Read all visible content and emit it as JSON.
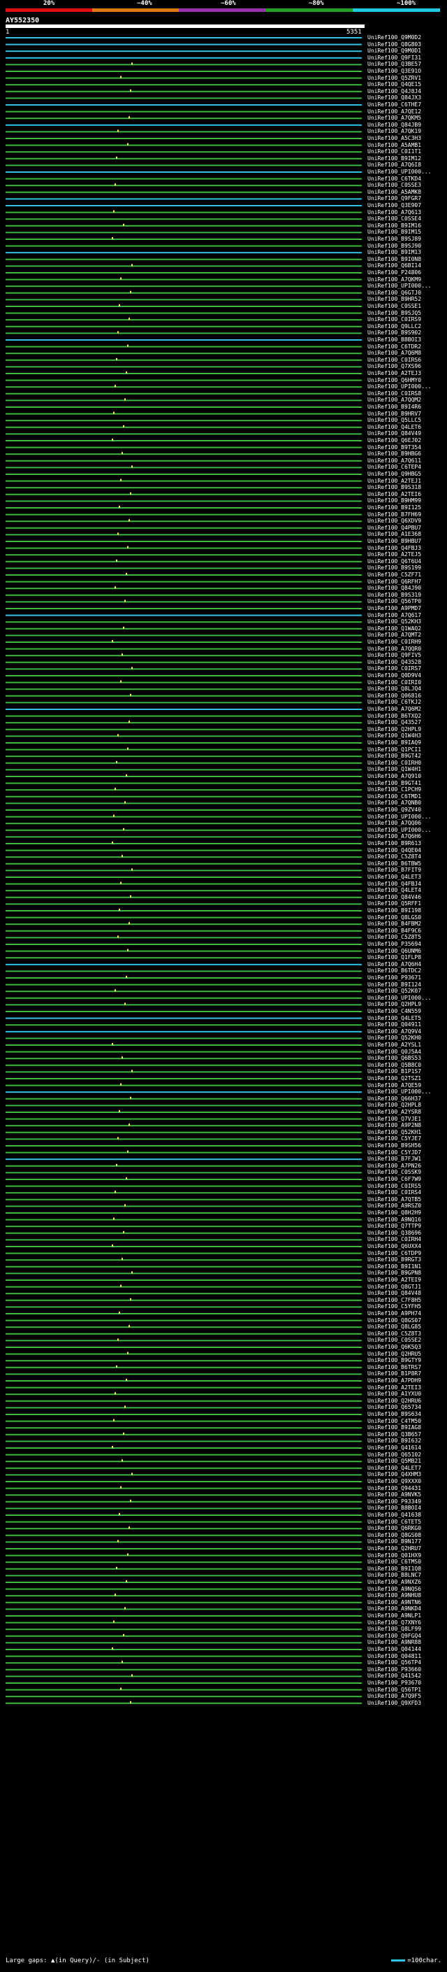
{
  "scale": {
    "labels": [
      "20%",
      "~40%",
      "~60%",
      "~80%",
      "~100%"
    ],
    "colors": [
      "#e01010",
      "#e07810",
      "#9a30b0",
      "#20a020",
      "#20c8e0"
    ]
  },
  "query": {
    "title": "AY552350",
    "start": "1",
    "end": "5351"
  },
  "legend": {
    "gaps_text": "Large gaps: ▲(in Query)/- (in Subject)",
    "scale_text": "=100char."
  },
  "colors": {
    "high": "#2fc4e8",
    "good": "#3cb83c",
    "insertion": "#ffe96b",
    "background": "#000000"
  },
  "hits": [
    {
      "label": "UniRef100_Q9M0D2",
      "color": "high"
    },
    {
      "label": "UniRef100_Q8G803",
      "color": "high"
    },
    {
      "label": "UniRef100_Q9M0D1",
      "color": "high"
    },
    {
      "label": "UniRef100_Q9FI31",
      "color": "high"
    },
    {
      "label": "UniRef100_Q3BE57",
      "color": "good"
    },
    {
      "label": "UniRef100_Q3E91O",
      "color": "good"
    },
    {
      "label": "UniRef100_Q5ZRV1",
      "color": "good"
    },
    {
      "label": "UniRef100_Q4QE15",
      "color": "good"
    },
    {
      "label": "UniRef100_Q4J8J4",
      "color": "good"
    },
    {
      "label": "UniRef100_Q84JX3",
      "color": "good"
    },
    {
      "label": "UniRef100_C6THE7",
      "color": "high"
    },
    {
      "label": "UniRef100_A7QE12",
      "color": "good"
    },
    {
      "label": "UniRef100_A7QKM5",
      "color": "good"
    },
    {
      "label": "UniRef100_Q84JB9",
      "color": "high"
    },
    {
      "label": "UniRef100_A7QK19",
      "color": "good"
    },
    {
      "label": "UniRef100_A5C3H3",
      "color": "good"
    },
    {
      "label": "UniRef100_A5AMB1",
      "color": "good"
    },
    {
      "label": "UniRef100_C0I1T1",
      "color": "good"
    },
    {
      "label": "UniRef100_B9IM12",
      "color": "good"
    },
    {
      "label": "UniRef100_A7Q6I8",
      "color": "good"
    },
    {
      "label": "UniRef100_UPI000...",
      "color": "high"
    },
    {
      "label": "UniRef100_C6TKD4",
      "color": "good"
    },
    {
      "label": "UniRef100_C0SSE3",
      "color": "good"
    },
    {
      "label": "UniRef100_A5AMK8",
      "color": "good"
    },
    {
      "label": "UniRef100_Q9FGR7",
      "color": "high"
    },
    {
      "label": "UniRef100_Q3E907",
      "color": "high"
    },
    {
      "label": "UniRef100_A7Q613",
      "color": "good"
    },
    {
      "label": "UniRef100_C0SSE4",
      "color": "good"
    },
    {
      "label": "UniRef100_B9IM16",
      "color": "good"
    },
    {
      "label": "UniRef100_B9IM15",
      "color": "good"
    },
    {
      "label": "UniRef100_B9SJ89",
      "color": "good"
    },
    {
      "label": "UniRef100_B9SJ90",
      "color": "good"
    },
    {
      "label": "UniRef100_B9IM13",
      "color": "high"
    },
    {
      "label": "UniRef100_B9I0N8",
      "color": "good"
    },
    {
      "label": "UniRef100_Q6BI14",
      "color": "good"
    },
    {
      "label": "UniRef100_P24806",
      "color": "good"
    },
    {
      "label": "UniRef100_A7QKM9",
      "color": "good"
    },
    {
      "label": "UniRef100_UPI000...",
      "color": "good"
    },
    {
      "label": "UniRef100_Q6GTJ0",
      "color": "good"
    },
    {
      "label": "UniRef100_B9HR52",
      "color": "good"
    },
    {
      "label": "UniRef100_C0SSE1",
      "color": "good"
    },
    {
      "label": "UniRef100_B9SJQ5",
      "color": "good"
    },
    {
      "label": "UniRef100_C0IRS9",
      "color": "good"
    },
    {
      "label": "UniRef100_Q9LLC2",
      "color": "good"
    },
    {
      "label": "UniRef100_B9S902",
      "color": "good"
    },
    {
      "label": "UniRef100_B8BOI3",
      "color": "high"
    },
    {
      "label": "UniRef100_C6TDR2",
      "color": "good"
    },
    {
      "label": "UniRef100_A7Q6M8",
      "color": "good"
    },
    {
      "label": "UniRef100_C0IRS6",
      "color": "good"
    },
    {
      "label": "UniRef100_Q7XS96",
      "color": "good"
    },
    {
      "label": "UniRef100_A2TEJ3",
      "color": "good"
    },
    {
      "label": "UniRef100_Q6HMY0",
      "color": "good"
    },
    {
      "label": "UniRef100_UPI000...",
      "color": "good"
    },
    {
      "label": "UniRef100_C0IRS8",
      "color": "good"
    },
    {
      "label": "UniRef100_A7QQM2",
      "color": "good"
    },
    {
      "label": "UniRef100_B9I4R6",
      "color": "good"
    },
    {
      "label": "UniRef100_B9HRV7",
      "color": "good"
    },
    {
      "label": "UniRef100_Q5LLC5",
      "color": "good"
    },
    {
      "label": "UniRef100_Q4LET6",
      "color": "good"
    },
    {
      "label": "UniRef100_Q84V49",
      "color": "good"
    },
    {
      "label": "UniRef100_Q6EJ02",
      "color": "good"
    },
    {
      "label": "UniRef100_B9T354",
      "color": "good"
    },
    {
      "label": "UniRef100_B9HBG6",
      "color": "good"
    },
    {
      "label": "UniRef100_A7Q611",
      "color": "good"
    },
    {
      "label": "UniRef100_C6TEP4",
      "color": "good"
    },
    {
      "label": "UniRef100_Q9HBG5",
      "color": "good"
    },
    {
      "label": "UniRef100_A2TEJ1",
      "color": "good"
    },
    {
      "label": "UniRef100_B9S318",
      "color": "good"
    },
    {
      "label": "UniRef100_A2TEI6",
      "color": "good"
    },
    {
      "label": "UniRef100_B9HM99",
      "color": "good"
    },
    {
      "label": "UniRef100_B9I125",
      "color": "good"
    },
    {
      "label": "UniRef100_B7FH69",
      "color": "good"
    },
    {
      "label": "UniRef100_Q6XDV9",
      "color": "good"
    },
    {
      "label": "UniRef100_Q4PBU7",
      "color": "good"
    },
    {
      "label": "UniRef100_A1E368",
      "color": "good"
    },
    {
      "label": "UniRef100_B9HBU7",
      "color": "good"
    },
    {
      "label": "UniRef100_Q4FBJ3",
      "color": "good"
    },
    {
      "label": "UniRef100_A2TEJ5",
      "color": "good"
    },
    {
      "label": "UniRef100_Q6T6U4",
      "color": "good"
    },
    {
      "label": "UniRef100_B9S199",
      "color": "good"
    },
    {
      "label": "UniRef100_C5ZF71",
      "color": "good"
    },
    {
      "label": "UniRef100_Q6RFH7",
      "color": "good"
    },
    {
      "label": "UniRef100_Q84J90",
      "color": "good"
    },
    {
      "label": "UniRef100_B9S319",
      "color": "good"
    },
    {
      "label": "UniRef100_Q56TP0",
      "color": "good"
    },
    {
      "label": "UniRef100_A9PMD7",
      "color": "good"
    },
    {
      "label": "UniRef100_A7Q617",
      "color": "high"
    },
    {
      "label": "UniRef100_Q52KH3",
      "color": "good"
    },
    {
      "label": "UniRef100_Q1WAQ2",
      "color": "good"
    },
    {
      "label": "UniRef100_A7QMT2",
      "color": "good"
    },
    {
      "label": "UniRef100_C0IRH9",
      "color": "good"
    },
    {
      "label": "UniRef100_A7QQR0",
      "color": "good"
    },
    {
      "label": "UniRef100_Q9FIV5",
      "color": "good"
    },
    {
      "label": "UniRef100_Q43528",
      "color": "good"
    },
    {
      "label": "UniRef100_C0IRS7",
      "color": "good"
    },
    {
      "label": "UniRef100_Q0D9V4",
      "color": "good"
    },
    {
      "label": "UniRef100_C0IRI0",
      "color": "good"
    },
    {
      "label": "UniRef100_Q8LJQ4",
      "color": "good"
    },
    {
      "label": "UniRef100_Q06816",
      "color": "good"
    },
    {
      "label": "UniRef100_C6TKJ2",
      "color": "good"
    },
    {
      "label": "UniRef100_A7Q6M2",
      "color": "high"
    },
    {
      "label": "UniRef100_B6TXQ2",
      "color": "good"
    },
    {
      "label": "UniRef100_Q43527",
      "color": "good"
    },
    {
      "label": "UniRef100_Q2HPL9",
      "color": "good"
    },
    {
      "label": "UniRef100_Q1W4H3",
      "color": "good"
    },
    {
      "label": "UniRef100_B9IAQ9",
      "color": "good"
    },
    {
      "label": "UniRef100_Q1PCI1",
      "color": "good"
    },
    {
      "label": "UniRef100_B9GT42",
      "color": "good"
    },
    {
      "label": "UniRef100_C0IRH0",
      "color": "good"
    },
    {
      "label": "UniRef100_Q1W4H1",
      "color": "good"
    },
    {
      "label": "UniRef100_A7Q910",
      "color": "good"
    },
    {
      "label": "UniRef100_B9GT41",
      "color": "good"
    },
    {
      "label": "UniRef100_C1PCH9",
      "color": "good"
    },
    {
      "label": "UniRef100_C6TMD1",
      "color": "good"
    },
    {
      "label": "UniRef100_A7QNB0",
      "color": "good"
    },
    {
      "label": "UniRef100_Q9ZV40",
      "color": "good"
    },
    {
      "label": "UniRef100_UPI000...",
      "color": "good"
    },
    {
      "label": "UniRef100_A7QQ06",
      "color": "good"
    },
    {
      "label": "UniRef100_UPI000...",
      "color": "good"
    },
    {
      "label": "UniRef100_A7Q6H6",
      "color": "good"
    },
    {
      "label": "UniRef100_B9R613",
      "color": "good"
    },
    {
      "label": "UniRef100_Q4QE04",
      "color": "good"
    },
    {
      "label": "UniRef100_C5Z8T4",
      "color": "good"
    },
    {
      "label": "UniRef100_B6TBW5",
      "color": "good"
    },
    {
      "label": "UniRef100_B7FIT9",
      "color": "good"
    },
    {
      "label": "UniRef100_Q4LET3",
      "color": "good"
    },
    {
      "label": "UniRef100_Q4FBJ4",
      "color": "good"
    },
    {
      "label": "UniRef100_Q4LET4",
      "color": "good"
    },
    {
      "label": "UniRef100_Q84V46",
      "color": "good"
    },
    {
      "label": "UniRef100_Q5RFF1",
      "color": "good"
    },
    {
      "label": "UniRef100_B9I198",
      "color": "good"
    },
    {
      "label": "UniRef100_Q8LGS0",
      "color": "good"
    },
    {
      "label": "UniRef100_B4FBM2",
      "color": "good"
    },
    {
      "label": "UniRef100_B4F9C6",
      "color": "good"
    },
    {
      "label": "UniRef100_C5Z8T5",
      "color": "good"
    },
    {
      "label": "UniRef100_P35694",
      "color": "good"
    },
    {
      "label": "UniRef100_Q6UNM6",
      "color": "good"
    },
    {
      "label": "UniRef100_Q1FLP8",
      "color": "good"
    },
    {
      "label": "UniRef100_A7Q6H4",
      "color": "high"
    },
    {
      "label": "UniRef100_B6TDC2",
      "color": "good"
    },
    {
      "label": "UniRef100_P93671",
      "color": "good"
    },
    {
      "label": "UniRef100_B9I124",
      "color": "good"
    },
    {
      "label": "UniRef100_Q52K07",
      "color": "good"
    },
    {
      "label": "UniRef100_UPI000...",
      "color": "good"
    },
    {
      "label": "UniRef100_Q2HPL9",
      "color": "good"
    },
    {
      "label": "UniRef100_C4N559",
      "color": "good"
    },
    {
      "label": "UniRef100_Q4LET5",
      "color": "high"
    },
    {
      "label": "UniRef100_Q04911",
      "color": "good"
    },
    {
      "label": "UniRef100_A7Q9V4",
      "color": "high"
    },
    {
      "label": "UniRef100_Q52KH0",
      "color": "good"
    },
    {
      "label": "UniRef100_A2YSL1",
      "color": "good"
    },
    {
      "label": "UniRef100_Q0J5A4",
      "color": "good"
    },
    {
      "label": "UniRef100_Q6BS53",
      "color": "good"
    },
    {
      "label": "UniRef100_Q5B8C0",
      "color": "good"
    },
    {
      "label": "UniRef100_B1P1S7",
      "color": "good"
    },
    {
      "label": "UniRef100_Q2TSZ1",
      "color": "good"
    },
    {
      "label": "UniRef100_A7QE59",
      "color": "good"
    },
    {
      "label": "UniRef100_UPI000...",
      "color": "high"
    },
    {
      "label": "UniRef100_Q66H37",
      "color": "good"
    },
    {
      "label": "UniRef100_Q2HPL8",
      "color": "good"
    },
    {
      "label": "UniRef100_A2YSR8",
      "color": "good"
    },
    {
      "label": "UniRef100_Q7VJE1",
      "color": "good"
    },
    {
      "label": "UniRef100_A9P2N8",
      "color": "good"
    },
    {
      "label": "UniRef100_Q52KH1",
      "color": "good"
    },
    {
      "label": "UniRef100_C5YJE7",
      "color": "good"
    },
    {
      "label": "UniRef100_B9SH56",
      "color": "good"
    },
    {
      "label": "UniRef100_C5YJD7",
      "color": "good"
    },
    {
      "label": "UniRef100_B7FJW1",
      "color": "high"
    },
    {
      "label": "UniRef100_A7PN26",
      "color": "good"
    },
    {
      "label": "UniRef100_C0SSK9",
      "color": "good"
    },
    {
      "label": "UniRef100_C6F7W9",
      "color": "good"
    },
    {
      "label": "UniRef100_C0IRS5",
      "color": "good"
    },
    {
      "label": "UniRef100_C0IRS4",
      "color": "good"
    },
    {
      "label": "UniRef100_A7QTB5",
      "color": "good"
    },
    {
      "label": "UniRef100_A9RSZ0",
      "color": "good"
    },
    {
      "label": "UniRef100_Q8H2H9",
      "color": "good"
    },
    {
      "label": "UniRef100_A9NQ16",
      "color": "good"
    },
    {
      "label": "UniRef100_Q7TTP9",
      "color": "good"
    },
    {
      "label": "UniRef100_Q38696",
      "color": "good"
    },
    {
      "label": "UniRef100_C0IRH4",
      "color": "good"
    },
    {
      "label": "UniRef100_Q6UXX4",
      "color": "good"
    },
    {
      "label": "UniRef100_C6TDP9",
      "color": "good"
    },
    {
      "label": "UniRef100_B9RGT3",
      "color": "good"
    },
    {
      "label": "UniRef100_B9I1N1",
      "color": "good"
    },
    {
      "label": "UniRef100_B9GPN8",
      "color": "good"
    },
    {
      "label": "UniRef100_A2TEI9",
      "color": "good"
    },
    {
      "label": "UniRef100_Q8GTJ1",
      "color": "good"
    },
    {
      "label": "UniRef100_Q84V48",
      "color": "good"
    },
    {
      "label": "UniRef100_C7F8H5",
      "color": "good"
    },
    {
      "label": "UniRef100_C5YFH5",
      "color": "good"
    },
    {
      "label": "UniRef100_A9PH74",
      "color": "good"
    },
    {
      "label": "UniRef100_Q8GS07",
      "color": "good"
    },
    {
      "label": "UniRef100_Q8LG85",
      "color": "good"
    },
    {
      "label": "UniRef100_C5Z8T3",
      "color": "good"
    },
    {
      "label": "UniRef100_C0SSE2",
      "color": "good"
    },
    {
      "label": "UniRef100_Q6K5Q3",
      "color": "good"
    },
    {
      "label": "UniRef100_Q2HRU5",
      "color": "good"
    },
    {
      "label": "UniRef100_B9GTY9",
      "color": "good"
    },
    {
      "label": "UniRef100_B6TRS7",
      "color": "good"
    },
    {
      "label": "UniRef100_B1P8R7",
      "color": "good"
    },
    {
      "label": "UniRef100_A7PDH9",
      "color": "good"
    },
    {
      "label": "UniRef100_A2TEI3",
      "color": "good"
    },
    {
      "label": "UniRef100_A1YXU0",
      "color": "good"
    },
    {
      "label": "UniRef100_Q2HRU6",
      "color": "good"
    },
    {
      "label": "UniRef100_Q65734",
      "color": "good"
    },
    {
      "label": "UniRef100_B9S634",
      "color": "good"
    },
    {
      "label": "UniRef100_C4TM50",
      "color": "good"
    },
    {
      "label": "UniRef100_B9IAG8",
      "color": "good"
    },
    {
      "label": "UniRef100_Q3B657",
      "color": "good"
    },
    {
      "label": "UniRef100_B9I632",
      "color": "good"
    },
    {
      "label": "UniRef100_Q41614",
      "color": "good"
    },
    {
      "label": "UniRef100_Q65102",
      "color": "good"
    },
    {
      "label": "UniRef100_Q5MB21",
      "color": "good"
    },
    {
      "label": "UniRef100_Q4LET7",
      "color": "good"
    },
    {
      "label": "UniRef100_Q4XHM3",
      "color": "good"
    },
    {
      "label": "UniRef100_Q9XXX0",
      "color": "good"
    },
    {
      "label": "UniRef100_Q94431",
      "color": "good"
    },
    {
      "label": "UniRef100_A9NVK5",
      "color": "good"
    },
    {
      "label": "UniRef100_P93349",
      "color": "good"
    },
    {
      "label": "UniRef100_B8BOI4",
      "color": "good"
    },
    {
      "label": "UniRef100_Q41638",
      "color": "good"
    },
    {
      "label": "UniRef100_C6TET5",
      "color": "good"
    },
    {
      "label": "UniRef100_Q6RKG0",
      "color": "good"
    },
    {
      "label": "UniRef100_Q8GS08",
      "color": "good"
    },
    {
      "label": "UniRef100_B9N177",
      "color": "good"
    },
    {
      "label": "UniRef100_Q2HRU7",
      "color": "good"
    },
    {
      "label": "UniRef100_Q01HX9",
      "color": "good"
    },
    {
      "label": "UniRef100_C6TMS0",
      "color": "good"
    },
    {
      "label": "UniRef100_B9I1Q8",
      "color": "good"
    },
    {
      "label": "UniRef100_B8LNC7",
      "color": "good"
    },
    {
      "label": "UniRef100_A9NXZ6",
      "color": "good"
    },
    {
      "label": "UniRef100_A9NQS6",
      "color": "good"
    },
    {
      "label": "UniRef100_A9NHU8",
      "color": "good"
    },
    {
      "label": "UniRef100_A9NTN6",
      "color": "good"
    },
    {
      "label": "UniRef100_A9NKD4",
      "color": "good"
    },
    {
      "label": "UniRef100_A9NLP1",
      "color": "good"
    },
    {
      "label": "UniRef100_Q7XNY6",
      "color": "good"
    },
    {
      "label": "UniRef100_Q8LF99",
      "color": "good"
    },
    {
      "label": "UniRef100_Q9FGQ4",
      "color": "good"
    },
    {
      "label": "UniRef100_A9NR88",
      "color": "good"
    },
    {
      "label": "UniRef100_Q04144",
      "color": "good"
    },
    {
      "label": "UniRef100_Q04811",
      "color": "good"
    },
    {
      "label": "UniRef100_Q56TP4",
      "color": "good"
    },
    {
      "label": "UniRef100_P93660",
      "color": "good"
    },
    {
      "label": "UniRef100_Q41542",
      "color": "good"
    },
    {
      "label": "UniRef100_P93670",
      "color": "good"
    },
    {
      "label": "UniRef100_Q56TP1",
      "color": "good"
    },
    {
      "label": "UniRef100_A7Q9F5",
      "color": "good"
    },
    {
      "label": "UniRef100_Q9XFD3",
      "color": "good"
    }
  ]
}
